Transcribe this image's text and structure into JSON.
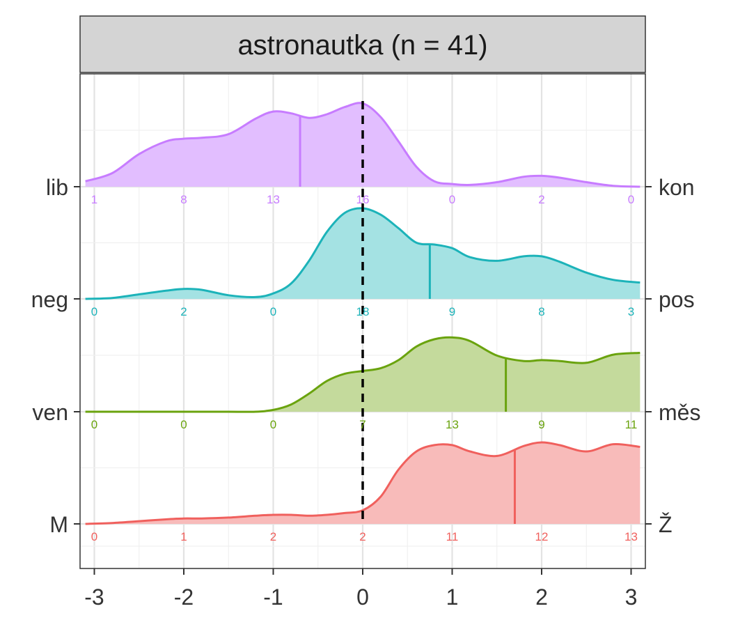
{
  "chart_data": {
    "type": "ridgeline",
    "facet_title": "astronautka (n = 41)",
    "x_ticks": [
      -3,
      -2,
      -1,
      0,
      1,
      2,
      3
    ],
    "xlim": [
      -3.1,
      3.1
    ],
    "reference_line_x": 0,
    "count_positions": [
      -3,
      -2,
      -1,
      0,
      1,
      2,
      3
    ],
    "series": [
      {
        "left_label": "lib",
        "right_label": "kon",
        "color": "#C77CFF",
        "fill": "#E2BEFF",
        "mean": -0.7,
        "counts": [
          1,
          8,
          13,
          16,
          0,
          2,
          0
        ],
        "density_x": [
          -3.1,
          -2.8,
          -2.5,
          -2.2,
          -2.0,
          -1.8,
          -1.5,
          -1.2,
          -1.0,
          -0.8,
          -0.6,
          -0.4,
          -0.2,
          0.0,
          0.2,
          0.4,
          0.6,
          0.8,
          1.0,
          1.2,
          1.5,
          1.8,
          2.0,
          2.2,
          2.5,
          2.8,
          3.1
        ],
        "density_y": [
          0.06,
          0.15,
          0.36,
          0.5,
          0.53,
          0.54,
          0.58,
          0.75,
          0.83,
          0.81,
          0.76,
          0.8,
          0.88,
          0.92,
          0.77,
          0.5,
          0.22,
          0.06,
          0.03,
          0.02,
          0.05,
          0.11,
          0.12,
          0.1,
          0.05,
          0.01,
          0.0
        ]
      },
      {
        "left_label": "neg",
        "right_label": "pos",
        "color": "#1CB3B9",
        "fill": "#A4E2E3",
        "mean": 0.75,
        "counts": [
          0,
          2,
          0,
          18,
          9,
          8,
          3
        ],
        "density_x": [
          -3.1,
          -2.8,
          -2.5,
          -2.2,
          -2.0,
          -1.8,
          -1.5,
          -1.2,
          -1.0,
          -0.8,
          -0.6,
          -0.4,
          -0.2,
          0.0,
          0.2,
          0.4,
          0.6,
          0.8,
          1.0,
          1.2,
          1.5,
          1.8,
          2.0,
          2.2,
          2.5,
          2.8,
          3.1
        ],
        "density_y": [
          0.0,
          0.01,
          0.05,
          0.09,
          0.11,
          0.1,
          0.04,
          0.02,
          0.06,
          0.17,
          0.42,
          0.74,
          0.95,
          1.0,
          0.93,
          0.78,
          0.62,
          0.6,
          0.56,
          0.46,
          0.42,
          0.47,
          0.47,
          0.41,
          0.29,
          0.21,
          0.18
        ]
      },
      {
        "left_label": "ven",
        "right_label": "měs",
        "color": "#6AA30E",
        "fill": "#C4DA9C",
        "mean": 1.6,
        "counts": [
          0,
          0,
          0,
          7,
          13,
          9,
          11
        ],
        "density_x": [
          -3.1,
          -2.8,
          -2.5,
          -2.2,
          -2.0,
          -1.8,
          -1.5,
          -1.2,
          -1.0,
          -0.8,
          -0.6,
          -0.4,
          -0.2,
          0.0,
          0.2,
          0.4,
          0.6,
          0.8,
          1.0,
          1.2,
          1.5,
          1.8,
          2.0,
          2.2,
          2.5,
          2.8,
          3.1
        ],
        "density_y": [
          0.0,
          0.0,
          0.0,
          0.0,
          0.0,
          0.0,
          0.0,
          0.0,
          0.02,
          0.08,
          0.2,
          0.34,
          0.42,
          0.45,
          0.48,
          0.57,
          0.72,
          0.8,
          0.82,
          0.78,
          0.62,
          0.56,
          0.57,
          0.56,
          0.54,
          0.63,
          0.65
        ]
      },
      {
        "left_label": "M",
        "right_label": "Ž",
        "color": "#F0605D",
        "fill": "#F8BBBA",
        "mean": 1.7,
        "counts": [
          0,
          1,
          2,
          2,
          11,
          12,
          13
        ],
        "density_x": [
          -3.1,
          -2.8,
          -2.5,
          -2.2,
          -2.0,
          -1.8,
          -1.5,
          -1.2,
          -1.0,
          -0.8,
          -0.6,
          -0.4,
          -0.2,
          0.0,
          0.2,
          0.4,
          0.6,
          0.8,
          1.0,
          1.2,
          1.5,
          1.8,
          2.0,
          2.2,
          2.5,
          2.8,
          3.1
        ],
        "density_y": [
          0.0,
          0.01,
          0.03,
          0.05,
          0.06,
          0.06,
          0.07,
          0.09,
          0.1,
          0.1,
          0.09,
          0.1,
          0.12,
          0.15,
          0.3,
          0.6,
          0.8,
          0.87,
          0.87,
          0.8,
          0.75,
          0.86,
          0.9,
          0.87,
          0.8,
          0.88,
          0.85
        ]
      }
    ]
  }
}
